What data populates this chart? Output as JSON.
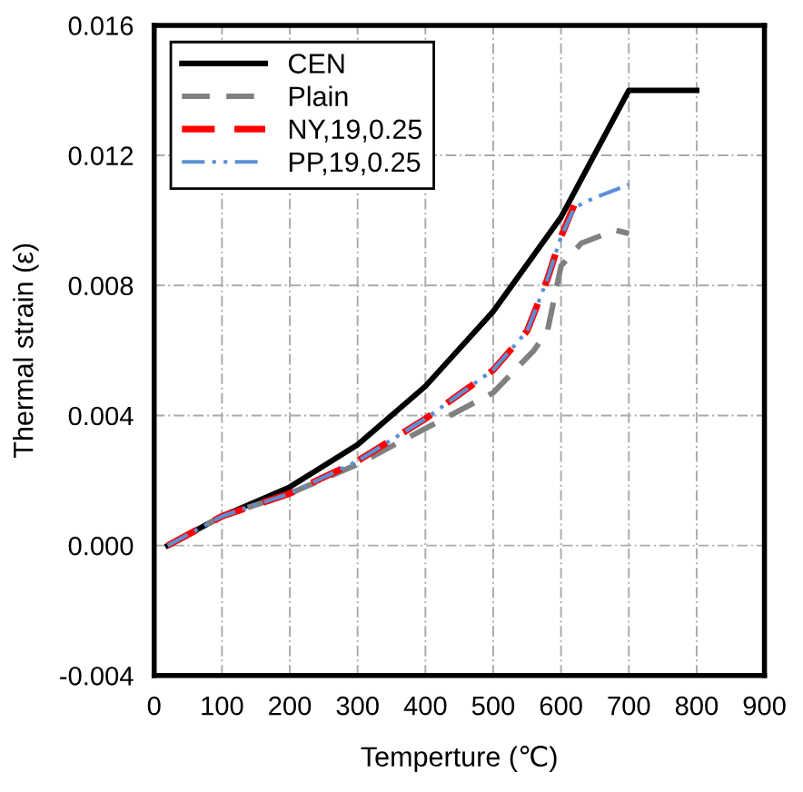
{
  "chart_data": {
    "type": "line",
    "xlabel": "Temperture (℃)",
    "ylabel": "Thermal strain (ε)",
    "xlim": [
      0,
      900
    ],
    "xticks": [
      0,
      100,
      200,
      300,
      400,
      500,
      600,
      700,
      800,
      900
    ],
    "ylim": [
      -0.004,
      0.016
    ],
    "yticks": [
      {
        "value": -0.004,
        "label": "-0.004"
      },
      {
        "value": 0,
        "label": "0.000"
      },
      {
        "value": 0.004,
        "label": "0.004"
      },
      {
        "value": 0.008,
        "label": "0.008"
      },
      {
        "value": 0.012,
        "label": "0.012"
      },
      {
        "value": 0.016,
        "label": "0.016"
      }
    ],
    "grid": true,
    "legend": "top left",
    "series": [
      {
        "name": "CEN",
        "color": "#000000",
        "line_style": "solid",
        "x": [
          20,
          100,
          200,
          300,
          400,
          500,
          600,
          700,
          800
        ],
        "values": [
          0,
          0.0009,
          0.0018,
          0.0031,
          0.0049,
          0.0072,
          0.0101,
          0.014,
          0.014
        ]
      },
      {
        "name": "Plain",
        "color": "#808080",
        "line_style": "dashed",
        "x": [
          20,
          100,
          200,
          300,
          400,
          500,
          560,
          580,
          600,
          630,
          680,
          700
        ],
        "values": [
          0,
          0.0009,
          0.0016,
          0.0025,
          0.0036,
          0.0047,
          0.006,
          0.0066,
          0.0086,
          0.0093,
          0.0097,
          0.0096
        ]
      },
      {
        "name": "NY,19,0.25",
        "color": "#ff0000",
        "line_style": "dashed",
        "x": [
          20,
          100,
          200,
          300,
          400,
          500,
          550,
          580,
          600,
          620
        ],
        "values": [
          0,
          0.0009,
          0.0016,
          0.0026,
          0.0039,
          0.0054,
          0.0066,
          0.0082,
          0.0095,
          0.0105
        ]
      },
      {
        "name": "PP,19,0.25",
        "color": "#5b8fd6",
        "line_style": "dashdot",
        "x": [
          20,
          100,
          200,
          300,
          400,
          500,
          550,
          580,
          600,
          620,
          650,
          700
        ],
        "values": [
          0,
          0.0009,
          0.0016,
          0.0026,
          0.0039,
          0.0054,
          0.0066,
          0.0082,
          0.0095,
          0.0104,
          0.0107,
          0.0111
        ]
      }
    ]
  }
}
